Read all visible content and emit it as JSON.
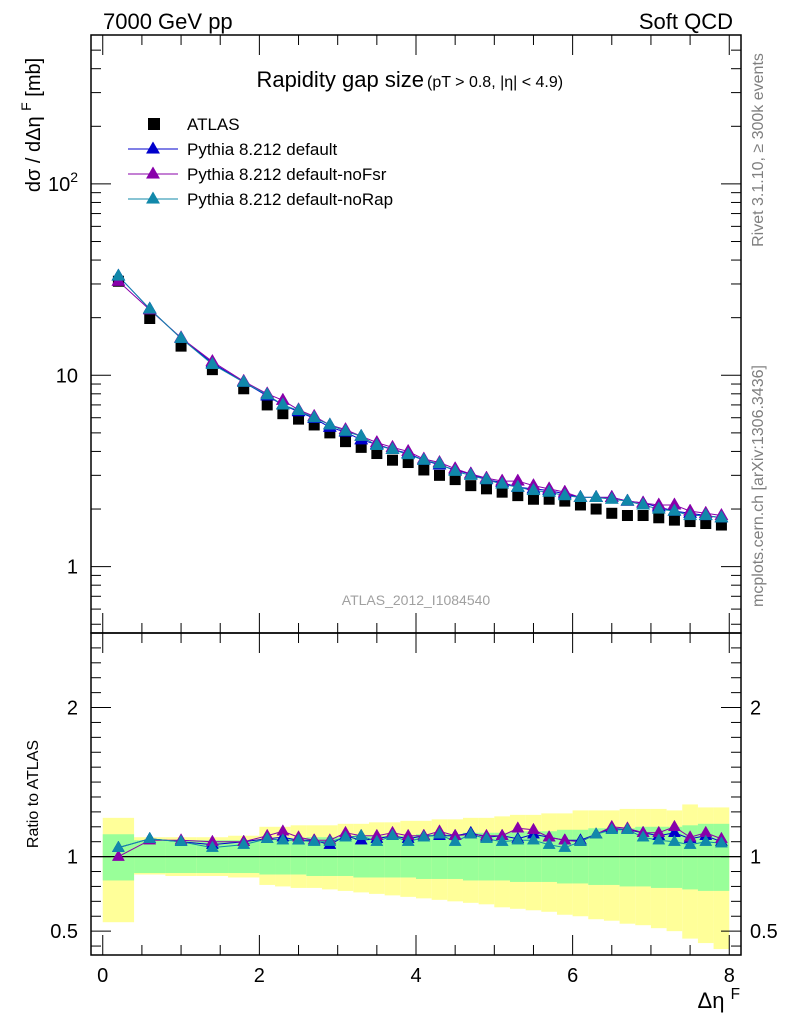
{
  "header": {
    "left": "7000 GeV pp",
    "right": "Soft QCD"
  },
  "side_labels": {
    "rivet": "Rivet 3.1.10, ≥ 300k events",
    "mcplots": "mcplots.cern.ch [arXiv:1306.3436]"
  },
  "analysis_id": "ATLAS_2012_I1084540",
  "chart_data": [
    {
      "panel": "main",
      "type": "scatter",
      "title": "Rapidity gap size",
      "title_note": "(pT > 0.8, |η| < 4.9)",
      "ylabel": "dσ / dΔηF [mb]",
      "xlabel": "ΔηF",
      "yscale": "log",
      "xlim": [
        -0.15,
        8.15
      ],
      "ylim": [
        0.45,
        600
      ],
      "y_ticks": [
        1,
        10,
        100
      ],
      "y_tick_labels": [
        "1",
        "10",
        "10^2"
      ],
      "legend_position": "top-left",
      "legend": [
        "ATLAS",
        "Pythia 8.212 default",
        "Pythia 8.212 default-noFsr",
        "Pythia 8.212 default-noRap"
      ],
      "x": [
        0.2,
        0.6,
        1.0,
        1.4,
        1.8,
        2.1,
        2.3,
        2.5,
        2.7,
        2.9,
        3.1,
        3.3,
        3.5,
        3.7,
        3.9,
        4.1,
        4.3,
        4.5,
        4.7,
        4.9,
        5.1,
        5.3,
        5.5,
        5.7,
        5.9,
        6.1,
        6.3,
        6.5,
        6.7,
        6.9,
        7.1,
        7.3,
        7.5,
        7.7,
        7.9
      ],
      "series": [
        {
          "name": "ATLAS",
          "marker": "square",
          "color": "#000000",
          "values": [
            31,
            19.8,
            14.2,
            10.7,
            8.5,
            7.0,
            6.3,
            5.9,
            5.5,
            5.0,
            4.5,
            4.2,
            3.9,
            3.6,
            3.5,
            3.2,
            3.0,
            2.85,
            2.65,
            2.55,
            2.45,
            2.35,
            2.25,
            2.25,
            2.2,
            2.1,
            2.0,
            1.9,
            1.85,
            1.85,
            1.8,
            1.75,
            1.72,
            1.68,
            1.65
          ]
        },
        {
          "name": "Pythia 8.212 default",
          "marker": "triangle",
          "color": "#0000cc",
          "values": [
            33,
            22.2,
            15.6,
            11.6,
            9.2,
            7.8,
            7.0,
            6.45,
            5.95,
            5.35,
            5.05,
            4.6,
            4.35,
            4.1,
            3.9,
            3.6,
            3.4,
            3.2,
            3.05,
            2.85,
            2.75,
            2.6,
            2.55,
            2.5,
            2.4,
            2.3,
            2.3,
            2.3,
            2.2,
            2.15,
            2.05,
            1.95,
            1.9,
            1.85,
            1.8
          ]
        },
        {
          "name": "Pythia 8.212 default-noFsr",
          "marker": "triangle",
          "color": "#8800aa",
          "values": [
            31,
            22,
            15.7,
            11.8,
            9.3,
            8.0,
            7.4,
            6.6,
            6.1,
            5.5,
            5.2,
            4.8,
            4.45,
            4.2,
            4.0,
            3.65,
            3.5,
            3.25,
            3.05,
            2.9,
            2.8,
            2.8,
            2.65,
            2.55,
            2.45,
            2.3,
            2.3,
            2.3,
            2.2,
            2.15,
            2.1,
            2.1,
            1.95,
            1.9,
            1.85
          ]
        },
        {
          "name": "Pythia 8.212 default-noRap",
          "marker": "triangle",
          "color": "#1188aa",
          "values": [
            33,
            22.2,
            15.6,
            11.4,
            9.2,
            7.9,
            7.0,
            6.55,
            6.0,
            5.5,
            5.1,
            4.8,
            4.3,
            4.1,
            3.85,
            3.6,
            3.45,
            3.15,
            3.0,
            2.85,
            2.7,
            2.6,
            2.5,
            2.45,
            2.35,
            2.3,
            2.3,
            2.25,
            2.2,
            2.1,
            2.0,
            1.95,
            1.85,
            1.85,
            1.8
          ]
        }
      ]
    },
    {
      "panel": "ratio",
      "type": "line",
      "ylabel": "Ratio to ATLAS",
      "xlabel": "ΔηF",
      "xlim": [
        -0.15,
        8.15
      ],
      "ylim": [
        0.34,
        2.5
      ],
      "y_ticks": [
        0.5,
        1,
        2
      ],
      "y_tick_labels": [
        "0.5",
        "1",
        "2"
      ],
      "x_ticks": [
        0,
        2,
        4,
        6,
        8
      ],
      "x_tick_labels": [
        "0",
        "2",
        "4",
        "6",
        "8"
      ],
      "x": [
        0.2,
        0.6,
        1.0,
        1.4,
        1.8,
        2.1,
        2.3,
        2.5,
        2.7,
        2.9,
        3.1,
        3.3,
        3.5,
        3.7,
        3.9,
        4.1,
        4.3,
        4.5,
        4.7,
        4.9,
        5.1,
        5.3,
        5.5,
        5.7,
        5.9,
        6.1,
        6.3,
        6.5,
        6.7,
        6.9,
        7.1,
        7.3,
        7.5,
        7.7,
        7.9
      ],
      "bins": [
        [
          0.0,
          0.4
        ],
        [
          0.4,
          0.8
        ],
        [
          0.8,
          1.2
        ],
        [
          1.2,
          1.6
        ],
        [
          1.6,
          2.0
        ],
        [
          2.0,
          2.2
        ],
        [
          2.2,
          2.4
        ],
        [
          2.4,
          2.6
        ],
        [
          2.6,
          2.8
        ],
        [
          2.8,
          3.0
        ],
        [
          3.0,
          3.2
        ],
        [
          3.2,
          3.4
        ],
        [
          3.4,
          3.6
        ],
        [
          3.6,
          3.8
        ],
        [
          3.8,
          4.0
        ],
        [
          4.0,
          4.2
        ],
        [
          4.2,
          4.4
        ],
        [
          4.4,
          4.6
        ],
        [
          4.6,
          4.8
        ],
        [
          4.8,
          5.0
        ],
        [
          5.0,
          5.2
        ],
        [
          5.2,
          5.4
        ],
        [
          5.4,
          5.6
        ],
        [
          5.6,
          5.8
        ],
        [
          5.8,
          6.0
        ],
        [
          6.0,
          6.2
        ],
        [
          6.2,
          6.4
        ],
        [
          6.4,
          6.6
        ],
        [
          6.6,
          6.8
        ],
        [
          6.8,
          7.0
        ],
        [
          7.0,
          7.2
        ],
        [
          7.2,
          7.4
        ],
        [
          7.4,
          7.6
        ],
        [
          7.6,
          7.8
        ],
        [
          7.8,
          8.0
        ]
      ],
      "band_inner_up": [
        1.15,
        1.11,
        1.11,
        1.11,
        1.11,
        1.12,
        1.12,
        1.12,
        1.13,
        1.13,
        1.13,
        1.14,
        1.14,
        1.14,
        1.14,
        1.15,
        1.15,
        1.15,
        1.16,
        1.16,
        1.16,
        1.17,
        1.17,
        1.17,
        1.18,
        1.18,
        1.19,
        1.19,
        1.19,
        1.2,
        1.2,
        1.2,
        1.21,
        1.22,
        1.22
      ],
      "band_inner_down": [
        0.84,
        0.89,
        0.89,
        0.89,
        0.89,
        0.88,
        0.88,
        0.88,
        0.87,
        0.87,
        0.87,
        0.86,
        0.86,
        0.86,
        0.86,
        0.85,
        0.85,
        0.85,
        0.84,
        0.84,
        0.84,
        0.83,
        0.83,
        0.83,
        0.82,
        0.82,
        0.81,
        0.81,
        0.8,
        0.8,
        0.79,
        0.79,
        0.78,
        0.77,
        0.77
      ],
      "band_outer_up": [
        1.26,
        1.13,
        1.13,
        1.13,
        1.14,
        1.2,
        1.2,
        1.21,
        1.21,
        1.21,
        1.22,
        1.22,
        1.23,
        1.23,
        1.24,
        1.24,
        1.25,
        1.25,
        1.26,
        1.26,
        1.27,
        1.28,
        1.28,
        1.29,
        1.29,
        1.31,
        1.31,
        1.31,
        1.32,
        1.32,
        1.32,
        1.31,
        1.35,
        1.33,
        1.33
      ],
      "band_outer_down": [
        0.56,
        0.88,
        0.87,
        0.87,
        0.86,
        0.81,
        0.8,
        0.79,
        0.79,
        0.78,
        0.77,
        0.76,
        0.75,
        0.74,
        0.73,
        0.72,
        0.71,
        0.7,
        0.69,
        0.68,
        0.66,
        0.65,
        0.64,
        0.63,
        0.61,
        0.6,
        0.58,
        0.57,
        0.55,
        0.54,
        0.52,
        0.5,
        0.45,
        0.42,
        0.38
      ],
      "series": [
        {
          "name": "Pythia 8.212 default",
          "color": "#0000cc",
          "values": [
            1.06,
            1.12,
            1.1,
            1.08,
            1.1,
            1.12,
            1.13,
            1.11,
            1.11,
            1.08,
            1.14,
            1.11,
            1.12,
            1.14,
            1.12,
            1.14,
            1.14,
            1.14,
            1.16,
            1.13,
            1.14,
            1.12,
            1.15,
            1.13,
            1.11,
            1.11,
            1.15,
            1.19,
            1.18,
            1.16,
            1.14,
            1.16,
            1.12,
            1.14,
            1.1
          ]
        },
        {
          "name": "Pythia 8.212 default-noFsr",
          "color": "#8800aa",
          "values": [
            1.0,
            1.11,
            1.11,
            1.1,
            1.1,
            1.14,
            1.17,
            1.13,
            1.11,
            1.11,
            1.16,
            1.14,
            1.14,
            1.16,
            1.14,
            1.14,
            1.17,
            1.14,
            1.15,
            1.14,
            1.14,
            1.19,
            1.18,
            1.13,
            1.11,
            1.1,
            1.15,
            1.2,
            1.19,
            1.16,
            1.16,
            1.2,
            1.13,
            1.16,
            1.12
          ]
        },
        {
          "name": "Pythia 8.212 default-noRap",
          "color": "#1188aa",
          "values": [
            1.06,
            1.12,
            1.1,
            1.06,
            1.08,
            1.12,
            1.11,
            1.11,
            1.1,
            1.1,
            1.13,
            1.14,
            1.1,
            1.14,
            1.1,
            1.13,
            1.15,
            1.1,
            1.15,
            1.12,
            1.1,
            1.11,
            1.11,
            1.08,
            1.06,
            1.1,
            1.15,
            1.18,
            1.18,
            1.13,
            1.11,
            1.1,
            1.08,
            1.1,
            1.09
          ]
        }
      ]
    }
  ]
}
